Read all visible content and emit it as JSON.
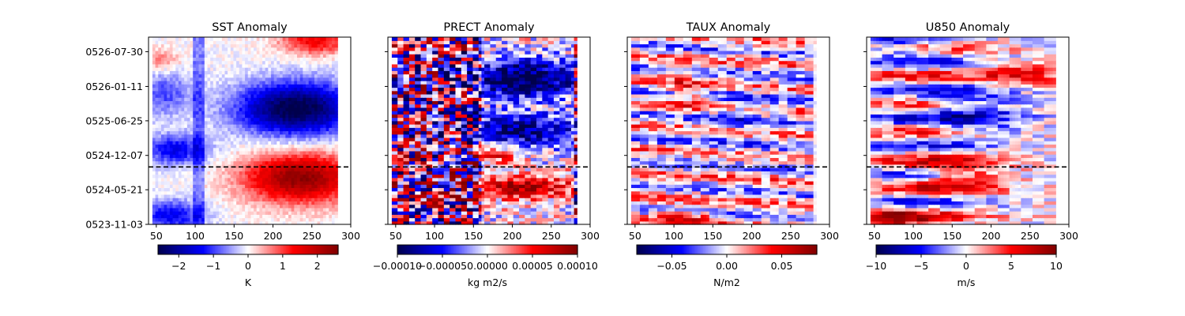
{
  "chart_data": [
    {
      "type": "heatmap",
      "title": "SST Anomaly",
      "xlabel": "",
      "ylabel": "",
      "x_ticks": [
        50,
        100,
        150,
        200,
        250,
        300
      ],
      "xlim": [
        40,
        300
      ],
      "y_ticks": [
        "0523-11-03",
        "0524-05-21",
        "0524-12-07",
        "0525-06-25",
        "0526-01-11",
        "0526-07-30"
      ],
      "y_ticks_shown": true,
      "dashed_line_date": "0524-10-01",
      "colorbar": {
        "ticks": [
          "−2",
          "−1",
          "0",
          "1",
          "2"
        ],
        "tick_values": [
          -2,
          -1,
          0,
          1,
          2
        ],
        "range": [
          -2.6,
          2.6
        ],
        "label": "K",
        "colormap": "seismic"
      },
      "pattern": "sst"
    },
    {
      "type": "heatmap",
      "title": "PRECT Anomaly",
      "xlabel": "",
      "ylabel": "",
      "x_ticks": [
        50,
        100,
        150,
        200,
        250,
        300
      ],
      "xlim": [
        40,
        300
      ],
      "y_ticks": [
        "0523-11-03",
        "0524-05-21",
        "0524-12-07",
        "0525-06-25",
        "0526-01-11",
        "0526-07-30"
      ],
      "y_ticks_shown": false,
      "dashed_line_date": "0524-10-01",
      "colorbar": {
        "ticks": [
          "−0.00010",
          "−0.00005",
          "0.00000",
          "0.00005",
          "0.00010"
        ],
        "tick_values": [
          -0.0001,
          -5e-05,
          0,
          5e-05,
          0.0001
        ],
        "range": [
          -0.0001,
          0.0001
        ],
        "label": "kg m2/s",
        "colormap": "seismic"
      },
      "pattern": "prect"
    },
    {
      "type": "heatmap",
      "title": "TAUX Anomaly",
      "xlabel": "",
      "ylabel": "",
      "x_ticks": [
        50,
        100,
        150,
        200,
        250,
        300
      ],
      "xlim": [
        40,
        300
      ],
      "y_ticks": [
        "0523-11-03",
        "0524-05-21",
        "0524-12-07",
        "0525-06-25",
        "0526-01-11",
        "0526-07-30"
      ],
      "y_ticks_shown": false,
      "dashed_line_date": "0524-10-01",
      "colorbar": {
        "ticks": [
          "−0.05",
          "0.00",
          "0.05"
        ],
        "tick_values": [
          -0.05,
          0,
          0.05
        ],
        "range": [
          -0.082,
          0.082
        ],
        "label": "N/m2",
        "colormap": "seismic"
      },
      "pattern": "taux"
    },
    {
      "type": "heatmap",
      "title": "U850 Anomaly",
      "xlabel": "",
      "ylabel": "",
      "x_ticks": [
        50,
        100,
        150,
        200,
        250,
        300
      ],
      "xlim": [
        40,
        300
      ],
      "y_ticks": [
        "0523-11-03",
        "0524-05-21",
        "0524-12-07",
        "0525-06-25",
        "0526-01-11",
        "0526-07-30"
      ],
      "y_ticks_shown": false,
      "dashed_line_date": "0524-10-01",
      "colorbar": {
        "ticks": [
          "−10",
          "−5",
          "0",
          "5",
          "10"
        ],
        "tick_values": [
          -10,
          -5,
          0,
          5,
          10
        ],
        "range": [
          -10,
          10
        ],
        "label": "m/s",
        "colormap": "seismic"
      },
      "pattern": "u850"
    }
  ]
}
